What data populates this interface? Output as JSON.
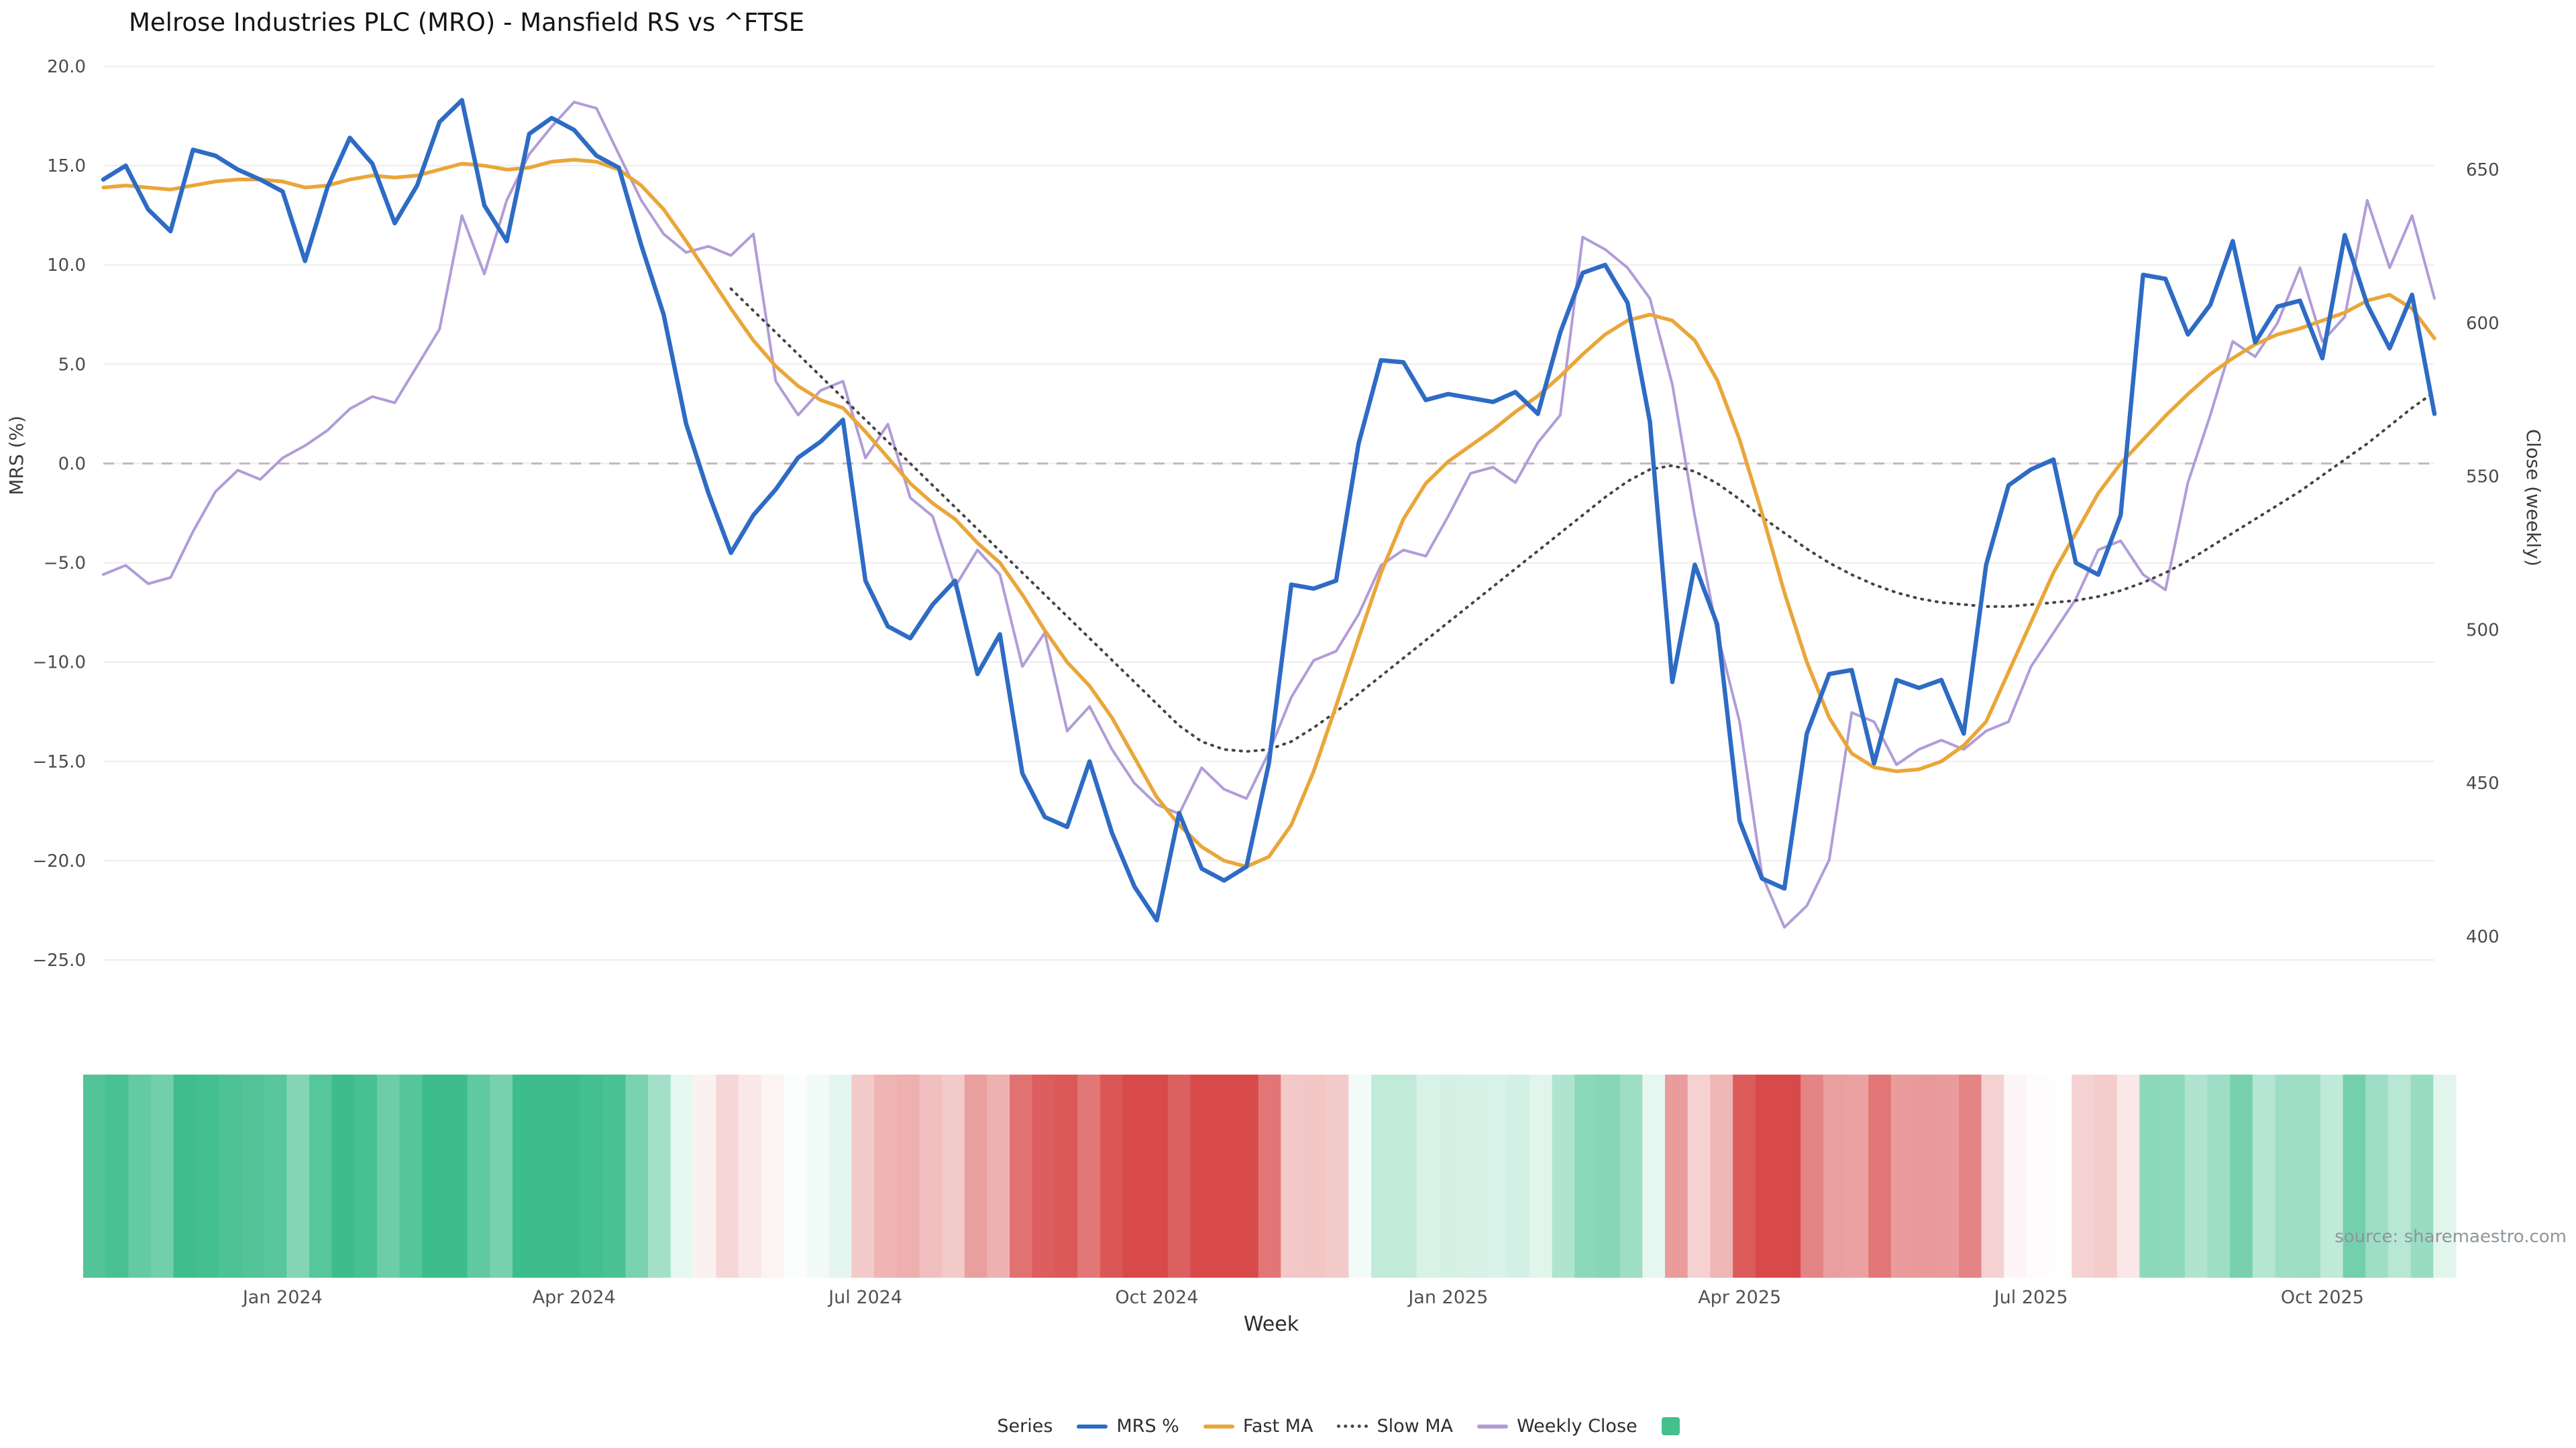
{
  "source_note": "source: sharemaestro.com",
  "legend": {
    "title": "Series",
    "items": [
      {
        "label": "MRS %",
        "swatch": "line",
        "color": "#2e6bc4"
      },
      {
        "label": "Fast MA",
        "swatch": "line",
        "color": "#e9a63a"
      },
      {
        "label": "Slow MA",
        "swatch": "dotted-line",
        "color": "#444444"
      },
      {
        "label": "Weekly Close",
        "swatch": "line",
        "color": "#b19cd8"
      },
      {
        "label": "",
        "swatch": "square",
        "color": "#45c08c"
      }
    ]
  },
  "chart_data": {
    "type": "line",
    "title": "Melrose Industries PLC (MRO) - Mansfield RS vs ^FTSE",
    "xlabel": "Week",
    "x_unit": "week",
    "grid": "horizontal",
    "legend_position": "bottom",
    "axes": {
      "left": {
        "title": "MRS (%)",
        "tick_values": [
          20,
          15,
          10,
          5,
          0,
          -5,
          -10,
          -15,
          -20,
          -25
        ],
        "tick_labels": [
          "20.0",
          "15.0",
          "10.0",
          "5.0",
          "0.0",
          "−5.0",
          "−10.0",
          "−15.0",
          "−20.0",
          "−25.0"
        ],
        "range": [
          -26.5,
          21.5
        ]
      },
      "right": {
        "title": "Close (weekly)",
        "tick_values": [
          650,
          600,
          550,
          500,
          450,
          400
        ],
        "tick_labels": [
          "650",
          "600",
          "550",
          "500",
          "450",
          "400"
        ],
        "range": [
          390,
          683
        ]
      }
    },
    "x_ticks": [
      {
        "i": 8,
        "label": "Jan 2024"
      },
      {
        "i": 21,
        "label": "Apr 2024"
      },
      {
        "i": 34,
        "label": "Jul 2024"
      },
      {
        "i": 47,
        "label": "Oct 2024"
      },
      {
        "i": 60,
        "label": "Jan 2025"
      },
      {
        "i": 73,
        "label": "Apr 2025"
      },
      {
        "i": 86,
        "label": "Jul 2025"
      },
      {
        "i": 99,
        "label": "Oct 2025"
      }
    ],
    "zero_line": {
      "value": 0,
      "style": "dashed",
      "color": "#c9b3b9"
    },
    "series": [
      {
        "name": "MRS %",
        "axis": "left",
        "color": "#2e6bc4",
        "style": "solid",
        "width": 6.5,
        "values": [
          14.3,
          15.0,
          12.8,
          11.7,
          15.8,
          15.5,
          14.8,
          14.3,
          13.7,
          10.2,
          13.9,
          16.4,
          15.1,
          12.1,
          14.0,
          17.2,
          18.3,
          13.0,
          11.2,
          16.6,
          17.4,
          16.8,
          15.5,
          14.9,
          11.0,
          7.5,
          2.0,
          -1.5,
          -4.5,
          -2.6,
          -1.3,
          0.3,
          1.1,
          2.2,
          -5.9,
          -8.2,
          -8.8,
          -7.1,
          -5.9,
          -10.6,
          -8.6,
          -15.6,
          -17.8,
          -18.3,
          -15.0,
          -18.6,
          -21.3,
          -23.0,
          -17.6,
          -20.4,
          -21.0,
          -20.3,
          -15.1,
          -6.1,
          -6.3,
          -5.9,
          1.0,
          5.2,
          5.1,
          3.2,
          3.5,
          3.3,
          3.1,
          3.6,
          2.5,
          6.6,
          9.6,
          10.0,
          8.1,
          2.1,
          -11.0,
          -5.1,
          -8.1,
          -18.0,
          -20.9,
          -21.4,
          -13.6,
          -10.6,
          -10.4,
          -15.1,
          -10.9,
          -11.3,
          -10.9,
          -13.6,
          -5.1,
          -1.1,
          -0.3,
          0.2,
          -5.0,
          -5.6,
          -2.6,
          9.5,
          9.3,
          6.5,
          8.0,
          11.2,
          6.1,
          7.9,
          8.2,
          5.3,
          11.5,
          8.0,
          5.8,
          8.5,
          2.5
        ]
      },
      {
        "name": "Fast MA",
        "axis": "left",
        "color": "#e9a63a",
        "style": "solid",
        "width": 5.5,
        "values": [
          13.9,
          14.0,
          13.9,
          13.8,
          14.0,
          14.2,
          14.3,
          14.3,
          14.2,
          13.9,
          14.0,
          14.3,
          14.5,
          14.4,
          14.5,
          14.8,
          15.1,
          15.0,
          14.8,
          14.9,
          15.2,
          15.3,
          15.2,
          14.8,
          14.0,
          12.8,
          11.2,
          9.5,
          7.8,
          6.2,
          4.9,
          3.9,
          3.2,
          2.8,
          1.6,
          0.3,
          -1.0,
          -2.0,
          -2.8,
          -4.0,
          -5.0,
          -6.6,
          -8.4,
          -10.0,
          -11.2,
          -12.8,
          -14.8,
          -16.8,
          -18.2,
          -19.3,
          -20.0,
          -20.3,
          -19.8,
          -18.2,
          -15.5,
          -12.2,
          -8.8,
          -5.5,
          -2.8,
          -1.0,
          0.1,
          0.9,
          1.7,
          2.6,
          3.4,
          4.4,
          5.5,
          6.5,
          7.2,
          7.5,
          7.2,
          6.2,
          4.2,
          1.2,
          -2.5,
          -6.5,
          -10.0,
          -12.8,
          -14.6,
          -15.3,
          -15.5,
          -15.4,
          -15.0,
          -14.2,
          -13.0,
          -10.5,
          -8.0,
          -5.5,
          -3.5,
          -1.5,
          0.0,
          1.2,
          2.4,
          3.5,
          4.5,
          5.3,
          6.0,
          6.5,
          6.8,
          7.2,
          7.6,
          8.2,
          8.5,
          7.8,
          6.3
        ]
      },
      {
        "name": "Slow MA",
        "axis": "left",
        "color": "#444444",
        "style": "dotted",
        "width": 4,
        "values": [
          null,
          null,
          null,
          null,
          null,
          null,
          null,
          null,
          null,
          null,
          null,
          null,
          null,
          null,
          null,
          null,
          null,
          null,
          null,
          null,
          null,
          null,
          null,
          null,
          null,
          null,
          null,
          null,
          8.8,
          7.7,
          6.6,
          5.5,
          4.4,
          3.3,
          2.2,
          1.1,
          0.0,
          -1.1,
          -2.2,
          -3.3,
          -4.4,
          -5.5,
          -6.6,
          -7.7,
          -8.8,
          -9.9,
          -11.0,
          -12.1,
          -13.2,
          -14.0,
          -14.4,
          -14.5,
          -14.4,
          -14.0,
          -13.3,
          -12.5,
          -11.6,
          -10.7,
          -9.8,
          -8.9,
          -8.0,
          -7.1,
          -6.2,
          -5.3,
          -4.4,
          -3.5,
          -2.6,
          -1.7,
          -0.9,
          -0.3,
          -0.1,
          -0.4,
          -1.0,
          -1.8,
          -2.7,
          -3.5,
          -4.3,
          -5.0,
          -5.6,
          -6.1,
          -6.5,
          -6.8,
          -7.0,
          -7.1,
          -7.2,
          -7.2,
          -7.1,
          -7.0,
          -6.9,
          -6.7,
          -6.4,
          -6.0,
          -5.5,
          -4.9,
          -4.2,
          -3.5,
          -2.8,
          -2.1,
          -1.4,
          -0.6,
          0.2,
          1.0,
          1.9,
          2.8,
          3.6
        ]
      },
      {
        "name": "Weekly Close",
        "axis": "right",
        "color": "#b19cd8",
        "style": "solid",
        "width": 4,
        "values": [
          518,
          521,
          515,
          517,
          532,
          545,
          552,
          549,
          556,
          560,
          565,
          572,
          576,
          574,
          586,
          598,
          635,
          616,
          640,
          655,
          664,
          672,
          670,
          655,
          640,
          629,
          623,
          625,
          622,
          629,
          581,
          570,
          578,
          581,
          556,
          567,
          543,
          537,
          514,
          526,
          518,
          488,
          499,
          467,
          475,
          461,
          450,
          443,
          440,
          455,
          448,
          445,
          460,
          478,
          490,
          493,
          505,
          521,
          526,
          524,
          537,
          551,
          553,
          548,
          561,
          570,
          628,
          624,
          618,
          608,
          580,
          537,
          499,
          470,
          420,
          403,
          410,
          425,
          473,
          470,
          456,
          461,
          464,
          461,
          467,
          470,
          488,
          499,
          510,
          526,
          529,
          518,
          513,
          548,
          570,
          594,
          589,
          600,
          618,
          594,
          602,
          640,
          618,
          635,
          608
        ]
      }
    ],
    "heatmap": {
      "derived_from": "MRS %",
      "positive_color": "#3dbd8c",
      "negative_color": "#d84a4a",
      "neutral_color": "#ffffff"
    }
  }
}
